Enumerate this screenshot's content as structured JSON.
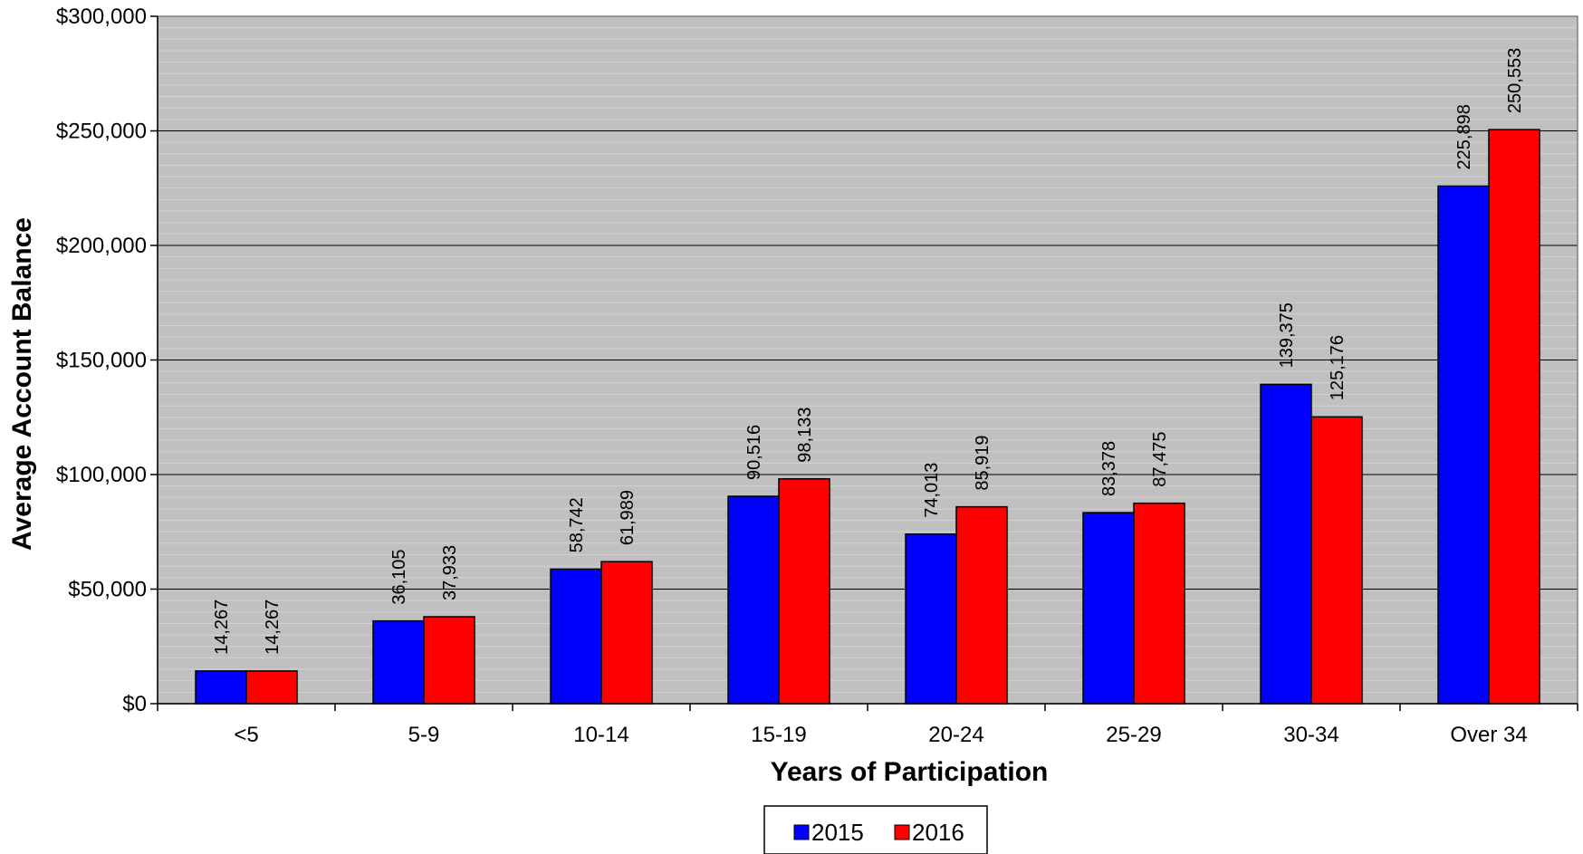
{
  "chart_data": {
    "type": "bar",
    "categories": [
      "<5",
      "5-9",
      "10-14",
      "15-19",
      "20-24",
      "25-29",
      "30-34",
      "Over 34"
    ],
    "series": [
      {
        "name": "2015",
        "color": "#0000ff",
        "values": [
          14267,
          36105,
          58742,
          90516,
          74013,
          83378,
          139375,
          225898
        ],
        "labels": [
          "14,267",
          "36,105",
          "58,742",
          "90,516",
          "74,013",
          "83,378",
          "139,375",
          "225,898"
        ]
      },
      {
        "name": "2016",
        "color": "#ff0000",
        "values": [
          14267,
          37933,
          61989,
          98133,
          85919,
          87475,
          125176,
          250553
        ],
        "labels": [
          "14,267",
          "37,933",
          "61,989",
          "98,133",
          "85,919",
          "87,475",
          "125,176",
          "250,553"
        ]
      }
    ],
    "title": "",
    "xlabel": "Years of Participation",
    "ylabel": "Average Account Balance",
    "ylim": [
      0,
      300000
    ],
    "y_ticks": [
      0,
      50000,
      100000,
      150000,
      200000,
      250000,
      300000
    ],
    "y_tick_labels": [
      "$0",
      "$50,000",
      "$100,000",
      "$150,000",
      "$200,000",
      "$250,000",
      "$300,000"
    ],
    "grid": true,
    "legend_position": "bottom-center",
    "plot_background": "#c0c0c0"
  }
}
